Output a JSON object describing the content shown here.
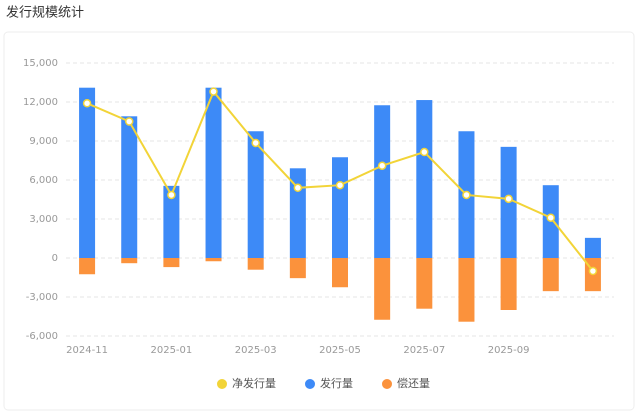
{
  "chart_data": {
    "type": "bar-line",
    "title": "发行规模统计",
    "categories": [
      "2024-11",
      null,
      "2025-01",
      null,
      "2025-03",
      null,
      "2025-05",
      null,
      "2025-07",
      null,
      "2025-09",
      null,
      null
    ],
    "series": [
      {
        "name": "净发行量",
        "type": "line",
        "color": "#f2d438",
        "values": [
          11900,
          10500,
          4850,
          12800,
          8850,
          5400,
          5600,
          7100,
          8150,
          4850,
          4550,
          3100,
          -1000
        ]
      },
      {
        "name": "发行量",
        "type": "bar",
        "color": "#3d8af7",
        "values": [
          13100,
          10900,
          5550,
          13100,
          9750,
          6900,
          7750,
          11750,
          12150,
          9750,
          8550,
          5600,
          1550
        ]
      },
      {
        "name": "偿还量",
        "type": "bar",
        "color": "#fb923c",
        "values": [
          -1250,
          -400,
          -700,
          -250,
          -900,
          -1550,
          -2250,
          -4750,
          -3900,
          -4900,
          -4000,
          -2550,
          -2550
        ]
      }
    ],
    "ylim": [
      -6000,
      15000
    ],
    "yticks": [
      {
        "value": -6000,
        "label": "-6,000"
      },
      {
        "value": -3000,
        "label": "-3,000"
      },
      0,
      {
        "value": 3000,
        "label": "3,000"
      },
      {
        "value": 6000,
        "label": "6,000"
      },
      {
        "value": 9000,
        "label": "9,000"
      },
      {
        "value": 12000,
        "label": "12,000"
      },
      {
        "value": 15000,
        "label": "15,000"
      }
    ],
    "grid": true
  }
}
